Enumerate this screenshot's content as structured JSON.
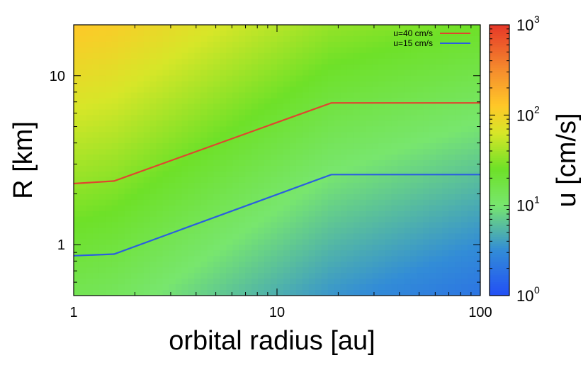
{
  "chart_data": {
    "type": "heatmap",
    "title": "",
    "xlabel": "orbital radius [au]",
    "ylabel": "R [km]",
    "colorbar_label": "u [cm/s]",
    "xscale": "log",
    "yscale": "log",
    "xlim": [
      1,
      100
    ],
    "ylim": [
      0.5,
      20
    ],
    "x_ticks": [
      {
        "value": 1,
        "label": "1"
      },
      {
        "value": 10,
        "label": "10"
      },
      {
        "value": 100,
        "label": "100"
      }
    ],
    "y_ticks": [
      {
        "value": 1,
        "label": "1"
      },
      {
        "value": 10,
        "label": "10"
      }
    ],
    "colorbar": {
      "scale": "log",
      "range": [
        1,
        1000
      ],
      "colormap": "blue-cyan-green-yellow-orange-red",
      "ticks": [
        {
          "value": 1,
          "base": "10",
          "exponent": "0"
        },
        {
          "value": 10,
          "base": "10",
          "exponent": "1"
        },
        {
          "value": 100,
          "base": "10",
          "exponent": "2"
        },
        {
          "value": 1000,
          "base": "10",
          "exponent": "3"
        }
      ]
    },
    "field_samples": {
      "description_of_grid": "log10(u) sampled at corners of the domain",
      "x": [
        1,
        1.58,
        18.5,
        100
      ],
      "y": [
        0.5,
        20
      ],
      "log10_u_at_ymin": [
        1.15,
        1.1,
        0.55,
        0.3
      ],
      "log10_u_at_ymax": [
        2.1,
        2.05,
        1.55,
        1.4
      ]
    },
    "series": [
      {
        "name": "u=40 cm/s",
        "color": "#e0452f",
        "x": [
          1,
          1.58,
          18.5,
          100
        ],
        "y": [
          2.3,
          2.38,
          6.9,
          6.9
        ]
      },
      {
        "name": "u=15 cm/s",
        "color": "#2a5ee0",
        "x": [
          1,
          1.58,
          18.5,
          100
        ],
        "y": [
          0.86,
          0.88,
          2.6,
          2.6
        ]
      }
    ],
    "legend": {
      "placement": "top-right"
    },
    "grid": false
  }
}
